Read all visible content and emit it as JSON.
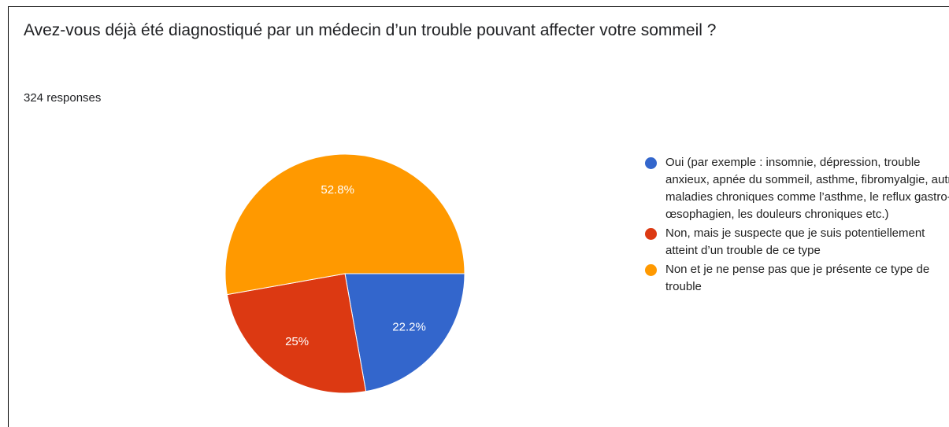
{
  "chart_data": {
    "type": "pie",
    "title": "Avez-vous déjà été diagnostiqué par un médecin d’un trouble pouvant affecter votre sommeil ?",
    "subtitle": "324 responses",
    "categories": [
      "Oui (par exemple : insomnie, dépression, trouble anxieux, apnée du sommeil, asthme, fibromyalgie, autre maladies chroniques comme l’asthme, le reflux gastro-œsophagien, les douleurs chroniques etc.)",
      "Non, mais je suspecte que je suis potentiellement atteint d’un trouble de ce type",
      "Non et je ne pense pas que je présente ce type de trouble"
    ],
    "values": [
      22.2,
      25,
      52.8
    ],
    "value_labels": [
      "22.2%",
      "25%",
      "52.8%"
    ],
    "colors": [
      "#3366cc",
      "#dc3912",
      "#ff9900"
    ],
    "legend": "right"
  }
}
